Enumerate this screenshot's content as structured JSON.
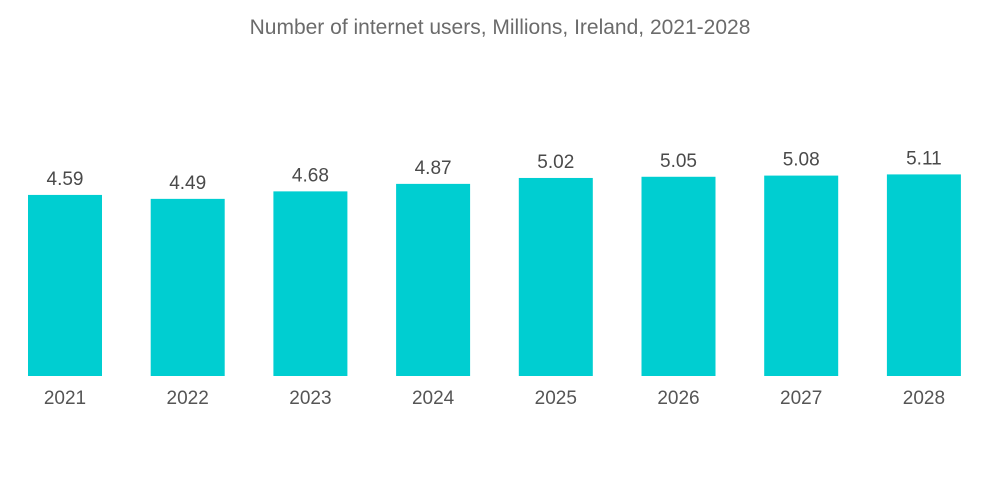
{
  "chart_data": {
    "type": "bar",
    "title": "Number of internet users, Millions, Ireland, 2021-2028",
    "xlabel": "",
    "ylabel": "",
    "categories": [
      "2021",
      "2022",
      "2023",
      "2024",
      "2025",
      "2026",
      "2027",
      "2028"
    ],
    "values": [
      4.59,
      4.49,
      4.68,
      4.87,
      5.02,
      5.05,
      5.08,
      5.11
    ],
    "value_labels": [
      "4.59",
      "4.49",
      "4.68",
      "4.87",
      "5.02",
      "5.05",
      "5.08",
      "5.11"
    ],
    "ylim": [
      0,
      5.11
    ],
    "grid": false,
    "legend": "none",
    "bar_color": "#00ced1"
  }
}
